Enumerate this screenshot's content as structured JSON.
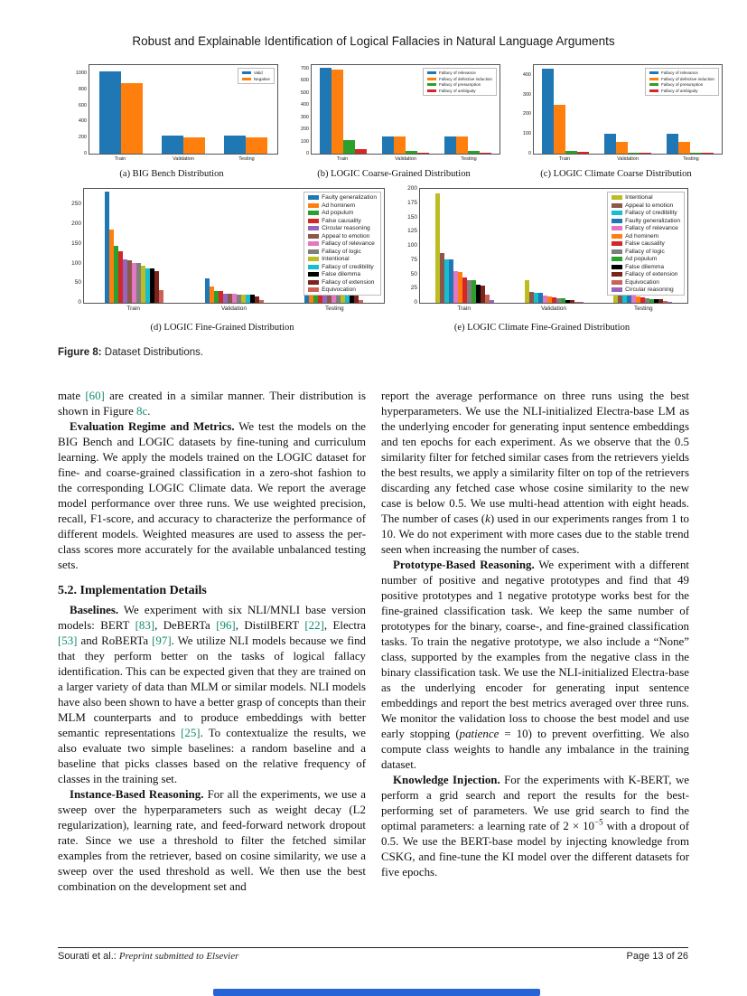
{
  "page": {
    "title": "Robust and Explainable Identification of Logical Fallacies in Natural Language Arguments",
    "footer": {
      "authors": "Sourati et al.:",
      "note": "Preprint submitted to Elsevier",
      "page": "Page 13 of 26"
    }
  },
  "colors": {
    "cite": "#118a6e",
    "bottom_bar": "#2563d6",
    "bar_blue": "#1f77b4",
    "bar_orange": "#ff7f0e",
    "bar_green": "#2ca02c",
    "bar_red": "#d62728"
  },
  "figure": {
    "label": "Figure 8:",
    "caption": "Dataset Distributions."
  },
  "chart_data": [
    {
      "type": "bar",
      "caption": "(a) BIG Bench Distribution",
      "size": "sm",
      "barw": 24,
      "legend_position": "upper right",
      "categories": [
        "Train",
        "Validation",
        "Testing"
      ],
      "series": [
        {
          "name": "Valid",
          "color": "#1f77b4",
          "values": [
            1020,
            225,
            225
          ]
        },
        {
          "name": "Negative",
          "color": "#ff7f0e",
          "values": [
            880,
            200,
            200
          ]
        }
      ],
      "yticks": [
        0,
        200,
        400,
        600,
        800,
        1000
      ],
      "ylim": [
        0,
        1100
      ]
    },
    {
      "type": "bar",
      "caption": "(b) LOGIC Coarse-Grained Distribution",
      "size": "sm",
      "barw": 13,
      "legend_position": "upper right",
      "categories": [
        "Train",
        "Validation",
        "Testing"
      ],
      "series": [
        {
          "name": "Fallacy of relevance",
          "color": "#1f77b4",
          "values": [
            710,
            145,
            140
          ]
        },
        {
          "name": "Fallacy of defective induction",
          "color": "#ff7f0e",
          "values": [
            690,
            143,
            140
          ]
        },
        {
          "name": "Fallacy of presumption",
          "color": "#2ca02c",
          "values": [
            110,
            22,
            20
          ]
        },
        {
          "name": "Fallacy of ambiguity",
          "color": "#d62728",
          "values": [
            35,
            7,
            6
          ]
        }
      ],
      "yticks": [
        0,
        100,
        200,
        300,
        400,
        500,
        600,
        700
      ],
      "ylim": [
        0,
        730
      ]
    },
    {
      "type": "bar",
      "caption": "(c) LOGIC Climate Coarse Distribution",
      "size": "sm",
      "barw": 13,
      "legend_position": "upper right",
      "categories": [
        "Train",
        "Validation",
        "Testing"
      ],
      "series": [
        {
          "name": "Fallacy of relevance",
          "color": "#1f77b4",
          "values": [
            430,
            100,
            100
          ]
        },
        {
          "name": "Fallacy of defective induction",
          "color": "#ff7f0e",
          "values": [
            250,
            60,
            62
          ]
        },
        {
          "name": "Fallacy of presumption",
          "color": "#2ca02c",
          "values": [
            15,
            5,
            5
          ]
        },
        {
          "name": "Fallacy of ambiguity",
          "color": "#d62728",
          "values": [
            8,
            3,
            3
          ]
        }
      ],
      "yticks": [
        0,
        100,
        200,
        300,
        400
      ],
      "ylim": [
        0,
        450
      ]
    },
    {
      "type": "bar",
      "caption": "(d) LOGIC Fine-Grained Distribution",
      "size": "lg",
      "barw": 5,
      "legend_position": "upper right",
      "categories": [
        "Train",
        "Validation",
        "Testing"
      ],
      "series": [
        {
          "name": "Faulty generalization",
          "color": "#1f77b4",
          "values": [
            282,
            62,
            59
          ]
        },
        {
          "name": "Ad hominem",
          "color": "#ff7f0e",
          "values": [
            187,
            41,
            39
          ]
        },
        {
          "name": "Ad populum",
          "color": "#2ca02c",
          "values": [
            145,
            30,
            31
          ]
        },
        {
          "name": "False causality",
          "color": "#d62728",
          "values": [
            132,
            29,
            28
          ]
        },
        {
          "name": "Circular reasoning",
          "color": "#9467bd",
          "values": [
            110,
            24,
            24
          ]
        },
        {
          "name": "Appeal to emotion",
          "color": "#8c564b",
          "values": [
            109,
            24,
            23
          ]
        },
        {
          "name": "Fallacy of relevance",
          "color": "#e377c2",
          "values": [
            101,
            22,
            22
          ]
        },
        {
          "name": "Fallacy of logic",
          "color": "#7f7f7f",
          "values": [
            101,
            21,
            21
          ]
        },
        {
          "name": "Intentional",
          "color": "#bcbd22",
          "values": [
            95,
            20,
            21
          ]
        },
        {
          "name": "Fallacy of credibility",
          "color": "#17becf",
          "values": [
            88,
            20,
            20
          ]
        },
        {
          "name": "False dilemma",
          "color": "#000000",
          "values": [
            88,
            20,
            20
          ]
        },
        {
          "name": "Fallacy of extension",
          "color": "#7b241c",
          "values": [
            80,
            17,
            19
          ]
        },
        {
          "name": "Equivocation",
          "color": "#cd6155",
          "values": [
            33,
            6,
            8
          ]
        }
      ],
      "yticks": [
        0,
        50,
        100,
        150,
        200,
        250
      ],
      "ylim": [
        0,
        290
      ]
    },
    {
      "type": "bar",
      "caption": "(e) LOGIC Climate Fine-Grained Distribution",
      "size": "lg",
      "barw": 5,
      "legend_position": "upper right",
      "categories": [
        "Train",
        "Validation",
        "Testing"
      ],
      "series": [
        {
          "name": "Intentional",
          "color": "#bcbd22",
          "values": [
            192,
            40,
            40
          ]
        },
        {
          "name": "Appeal to emotion",
          "color": "#8c564b",
          "values": [
            87,
            19,
            19
          ]
        },
        {
          "name": "Fallacy of credibility",
          "color": "#17becf",
          "values": [
            77,
            17,
            17
          ]
        },
        {
          "name": "Faulty generalization",
          "color": "#1f77b4",
          "values": [
            76,
            17,
            16
          ]
        },
        {
          "name": "Fallacy of relevance",
          "color": "#e377c2",
          "values": [
            56,
            12,
            12
          ]
        },
        {
          "name": "Ad hominem",
          "color": "#ff7f0e",
          "values": [
            54,
            11,
            11
          ]
        },
        {
          "name": "False causality",
          "color": "#d62728",
          "values": [
            44,
            10,
            10
          ]
        },
        {
          "name": "Fallacy of logic",
          "color": "#7f7f7f",
          "values": [
            40,
            8,
            8
          ]
        },
        {
          "name": "Ad populum",
          "color": "#2ca02c",
          "values": [
            40,
            8,
            7
          ]
        },
        {
          "name": "False dilemma",
          "color": "#000000",
          "values": [
            31,
            5,
            7
          ]
        },
        {
          "name": "Fallacy of extension",
          "color": "#7b241c",
          "values": [
            30,
            5,
            7
          ]
        },
        {
          "name": "Equivocation",
          "color": "#cd6155",
          "values": [
            14,
            2,
            3
          ]
        },
        {
          "name": "Circular reasoning",
          "color": "#9467bd",
          "values": [
            5,
            1,
            1
          ]
        }
      ],
      "yticks": [
        0,
        25,
        50,
        75,
        100,
        125,
        150,
        175,
        200
      ],
      "ylim": [
        0,
        200
      ]
    }
  ],
  "body": {
    "left": [
      {
        "indent": false,
        "segments": [
          {
            "t": "mate ",
            "s": "p"
          },
          {
            "t": "[60]",
            "s": "c"
          },
          {
            "t": " are created in a similar manner. Their distribution is shown in Figure ",
            "s": "p"
          },
          {
            "t": "8c",
            "s": "c"
          },
          {
            "t": ".",
            "s": "p"
          }
        ]
      },
      {
        "indent": true,
        "segments": [
          {
            "t": "Evaluation Regime and Metrics.",
            "s": "b"
          },
          {
            "t": " We test the models on the BIG Bench and LOGIC datasets by fine-tuning and curriculum learning. We apply the models trained on the LOGIC dataset for fine- and coarse-grained classification in a zero-shot fashion to the corresponding LOGIC Climate data. We report the average model performance over three runs. We use weighted precision, recall, F1-score, and accuracy to characterize the performance of different models. Weighted measures are used to assess the per-class scores more accurately for the available unbalanced testing sets.",
            "s": "p"
          }
        ]
      },
      {
        "heading": "5.2. Implementation Details"
      },
      {
        "indent": true,
        "segments": [
          {
            "t": "Baselines.",
            "s": "b"
          },
          {
            "t": " We experiment with six NLI/MNLI base version models: BERT ",
            "s": "p"
          },
          {
            "t": "[83]",
            "s": "c"
          },
          {
            "t": ", DeBERTa ",
            "s": "p"
          },
          {
            "t": "[96]",
            "s": "c"
          },
          {
            "t": ", DistilBERT ",
            "s": "p"
          },
          {
            "t": "[22]",
            "s": "c"
          },
          {
            "t": ", Electra ",
            "s": "p"
          },
          {
            "t": "[53]",
            "s": "c"
          },
          {
            "t": " and RoBERTa ",
            "s": "p"
          },
          {
            "t": "[97]",
            "s": "c"
          },
          {
            "t": ". We utilize NLI models because we find that they perform better on the tasks of logical fallacy identification. This can be expected given that they are trained on a larger variety of data than MLM or similar models. NLI models have also been shown to have a better grasp of concepts than their MLM counterparts and to produce embeddings with better semantic representations ",
            "s": "p"
          },
          {
            "t": "[25]",
            "s": "c"
          },
          {
            "t": ". To contextualize the results, we also evaluate two simple baselines: a random baseline and a baseline that picks classes based on the relative frequency of classes in the training set.",
            "s": "p"
          }
        ]
      },
      {
        "indent": true,
        "segments": [
          {
            "t": "Instance-Based Reasoning.",
            "s": "b"
          },
          {
            "t": " For all the experiments, we use a sweep over the hyperparameters such as weight decay (L2 regularization), learning rate, and feed-forward network dropout rate. Since we use a threshold to filter the fetched similar examples from the retriever, based on cosine similarity, we use a sweep over the used threshold as well. We then use the best combination on the development set and",
            "s": "p"
          }
        ]
      }
    ],
    "right": [
      {
        "indent": false,
        "segments": [
          {
            "t": "report the average performance on three runs using the best hyperparameters. We use the NLI-initialized Electra-base LM as the underlying encoder for generating input sentence embeddings and ten epochs for each experiment. As we observe that the 0.5 similarity filter for fetched similar cases from the retrievers yields the best results, we apply a similarity filter on top of the retrievers discarding any fetched case whose cosine similarity to the new case is below 0.5. We use multi-head attention with eight heads. The number of cases (",
            "s": "p"
          },
          {
            "t": "k",
            "s": "i"
          },
          {
            "t": ") used in our experiments ranges from 1 to 10. We do not experiment with more cases due to the stable trend seen when increasing the number of cases.",
            "s": "p"
          }
        ]
      },
      {
        "indent": true,
        "segments": [
          {
            "t": "Prototype-Based Reasoning.",
            "s": "b"
          },
          {
            "t": " We experiment with a different number of positive and negative prototypes and find that 49 positive prototypes and 1 negative prototype works best for the fine-grained classification task. We keep the same number of prototypes for the binary, coarse-, and fine-grained classification tasks. To train the negative prototype, we also include a “None” class, supported by the examples from the negative class in the binary classification task. We use the NLI-initialized Electra-base as the underlying encoder for generating input sentence embeddings and report the best metrics averaged over three runs. We monitor the validation loss to choose the best model and use early stopping (",
            "s": "p"
          },
          {
            "t": "patience",
            "s": "i"
          },
          {
            "t": " = 10) to prevent overfitting. We also compute class weights to handle any imbalance in the training dataset.",
            "s": "p"
          }
        ]
      },
      {
        "indent": true,
        "segments": [
          {
            "t": "Knowledge Injection.",
            "s": "b"
          },
          {
            "t": " For the experiments with K-BERT, we perform a grid search and report the results for the best-performing set of parameters. We use grid search to find the optimal parameters: a learning rate of 2 × 10",
            "s": "p"
          },
          {
            "t": "−5",
            "s": "sup"
          },
          {
            "t": " with a dropout of 0.5. We use the BERT-base model by injecting knowledge from CSKG, and fine-tune the KI model over the different datasets for five epochs.",
            "s": "p"
          }
        ]
      }
    ]
  }
}
